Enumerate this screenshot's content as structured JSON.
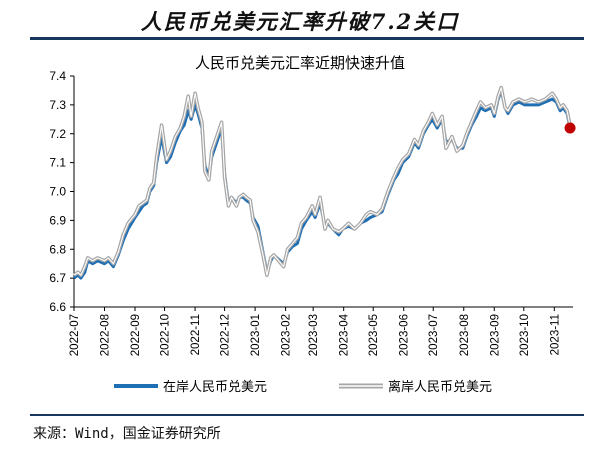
{
  "header": {
    "title": "人民币兑美元汇率升破7.2关口"
  },
  "source": "来源：Wind，国金证券研究所",
  "chart_data": {
    "type": "line",
    "title": "人民币兑美元汇率近期快速升值",
    "ylim": [
      6.6,
      7.4
    ],
    "y_ticks": [
      "6.6",
      "6.7",
      "6.8",
      "6.9",
      "7.0",
      "7.1",
      "7.2",
      "7.3",
      "7.4"
    ],
    "x_ticks": [
      "2022-07",
      "2022-08",
      "2022-09",
      "2022-10",
      "2022-11",
      "2022-12",
      "2023-01",
      "2023-02",
      "2023-03",
      "2023-04",
      "2023-05",
      "2023-06",
      "2023-07",
      "2023-08",
      "2023-09",
      "2023-10",
      "2023-11"
    ],
    "xlim": [
      "2022-07-01",
      "2023-11-20"
    ],
    "grid": false,
    "legend_position": "bottom",
    "colors": {
      "onshore": "#1f6fb5",
      "offshore": "#a6a6a6",
      "offshore_inner": "#ffffff",
      "marker": "#c00000",
      "axis": "#000000"
    },
    "series": [
      {
        "name": "在岸人民币兑美元",
        "points": [
          [
            "2022-07-01",
            6.7
          ],
          [
            "2022-07-05",
            6.71
          ],
          [
            "2022-07-08",
            6.7
          ],
          [
            "2022-07-12",
            6.72
          ],
          [
            "2022-07-15",
            6.76
          ],
          [
            "2022-07-20",
            6.75
          ],
          [
            "2022-07-25",
            6.76
          ],
          [
            "2022-08-01",
            6.75
          ],
          [
            "2022-08-05",
            6.76
          ],
          [
            "2022-08-10",
            6.74
          ],
          [
            "2022-08-15",
            6.78
          ],
          [
            "2022-08-20",
            6.83
          ],
          [
            "2022-08-25",
            6.87
          ],
          [
            "2022-09-01",
            6.91
          ],
          [
            "2022-09-05",
            6.93
          ],
          [
            "2022-09-09",
            6.95
          ],
          [
            "2022-09-13",
            6.96
          ],
          [
            "2022-09-16",
            7.0
          ],
          [
            "2022-09-20",
            7.02
          ],
          [
            "2022-09-23",
            7.1
          ],
          [
            "2022-09-28",
            7.19
          ],
          [
            "2022-10-03",
            7.1
          ],
          [
            "2022-10-07",
            7.12
          ],
          [
            "2022-10-12",
            7.17
          ],
          [
            "2022-10-17",
            7.21
          ],
          [
            "2022-10-21",
            7.23
          ],
          [
            "2022-10-25",
            7.28
          ],
          [
            "2022-10-28",
            7.25
          ],
          [
            "2022-11-01",
            7.3
          ],
          [
            "2022-11-04",
            7.27
          ],
          [
            "2022-11-08",
            7.22
          ],
          [
            "2022-11-11",
            7.09
          ],
          [
            "2022-11-15",
            7.05
          ],
          [
            "2022-11-18",
            7.12
          ],
          [
            "2022-11-24",
            7.18
          ],
          [
            "2022-11-28",
            7.22
          ],
          [
            "2022-12-01",
            7.06
          ],
          [
            "2022-12-05",
            6.96
          ],
          [
            "2022-12-08",
            6.98
          ],
          [
            "2022-12-13",
            6.96
          ],
          [
            "2022-12-16",
            6.98
          ],
          [
            "2022-12-20",
            6.98
          ],
          [
            "2022-12-23",
            6.97
          ],
          [
            "2022-12-27",
            6.96
          ],
          [
            "2022-12-30",
            6.91
          ],
          [
            "2023-01-04",
            6.88
          ],
          [
            "2023-01-09",
            6.79
          ],
          [
            "2023-01-13",
            6.72
          ],
          [
            "2023-01-17",
            6.76
          ],
          [
            "2023-01-20",
            6.78
          ],
          [
            "2023-01-30",
            6.75
          ],
          [
            "2023-02-03",
            6.79
          ],
          [
            "2023-02-08",
            6.81
          ],
          [
            "2023-02-13",
            6.82
          ],
          [
            "2023-02-17",
            6.87
          ],
          [
            "2023-02-22",
            6.9
          ],
          [
            "2023-02-28",
            6.93
          ],
          [
            "2023-03-03",
            6.91
          ],
          [
            "2023-03-08",
            6.96
          ],
          [
            "2023-03-13",
            6.88
          ],
          [
            "2023-03-16",
            6.89
          ],
          [
            "2023-03-21",
            6.87
          ],
          [
            "2023-03-27",
            6.85
          ],
          [
            "2023-03-31",
            6.87
          ],
          [
            "2023-04-06",
            6.88
          ],
          [
            "2023-04-12",
            6.87
          ],
          [
            "2023-04-18",
            6.89
          ],
          [
            "2023-04-24",
            6.9
          ],
          [
            "2023-04-28",
            6.91
          ],
          [
            "2023-05-05",
            6.92
          ],
          [
            "2023-05-10",
            6.93
          ],
          [
            "2023-05-16",
            6.99
          ],
          [
            "2023-05-22",
            7.04
          ],
          [
            "2023-05-26",
            7.06
          ],
          [
            "2023-05-31",
            7.1
          ],
          [
            "2023-06-06",
            7.12
          ],
          [
            "2023-06-12",
            7.17
          ],
          [
            "2023-06-16",
            7.15
          ],
          [
            "2023-06-21",
            7.2
          ],
          [
            "2023-06-26",
            7.23
          ],
          [
            "2023-06-30",
            7.25
          ],
          [
            "2023-07-05",
            7.22
          ],
          [
            "2023-07-10",
            7.25
          ],
          [
            "2023-07-14",
            7.17
          ],
          [
            "2023-07-20",
            7.18
          ],
          [
            "2023-07-25",
            7.15
          ],
          [
            "2023-07-31",
            7.15
          ],
          [
            "2023-08-04",
            7.19
          ],
          [
            "2023-08-09",
            7.23
          ],
          [
            "2023-08-14",
            7.26
          ],
          [
            "2023-08-18",
            7.29
          ],
          [
            "2023-08-23",
            7.28
          ],
          [
            "2023-08-29",
            7.29
          ],
          [
            "2023-09-01",
            7.26
          ],
          [
            "2023-09-05",
            7.32
          ],
          [
            "2023-09-08",
            7.35
          ],
          [
            "2023-09-12",
            7.29
          ],
          [
            "2023-09-15",
            7.27
          ],
          [
            "2023-09-20",
            7.3
          ],
          [
            "2023-09-26",
            7.31
          ],
          [
            "2023-10-02",
            7.3
          ],
          [
            "2023-10-09",
            7.3
          ],
          [
            "2023-10-16",
            7.3
          ],
          [
            "2023-10-23",
            7.31
          ],
          [
            "2023-10-30",
            7.32
          ],
          [
            "2023-11-03",
            7.31
          ],
          [
            "2023-11-07",
            7.28
          ],
          [
            "2023-11-10",
            7.29
          ],
          [
            "2023-11-14",
            7.27
          ],
          [
            "2023-11-17",
            7.22
          ]
        ]
      },
      {
        "name": "离岸人民币兑美元",
        "points": [
          [
            "2022-07-01",
            6.71
          ],
          [
            "2022-07-05",
            6.72
          ],
          [
            "2022-07-08",
            6.71
          ],
          [
            "2022-07-12",
            6.74
          ],
          [
            "2022-07-15",
            6.77
          ],
          [
            "2022-07-20",
            6.76
          ],
          [
            "2022-07-25",
            6.77
          ],
          [
            "2022-08-01",
            6.76
          ],
          [
            "2022-08-05",
            6.77
          ],
          [
            "2022-08-10",
            6.75
          ],
          [
            "2022-08-15",
            6.79
          ],
          [
            "2022-08-20",
            6.85
          ],
          [
            "2022-08-25",
            6.89
          ],
          [
            "2022-09-01",
            6.92
          ],
          [
            "2022-09-05",
            6.95
          ],
          [
            "2022-09-09",
            6.96
          ],
          [
            "2022-09-13",
            6.97
          ],
          [
            "2022-09-16",
            7.01
          ],
          [
            "2022-09-20",
            7.03
          ],
          [
            "2022-09-23",
            7.12
          ],
          [
            "2022-09-28",
            7.23
          ],
          [
            "2022-10-03",
            7.11
          ],
          [
            "2022-10-07",
            7.14
          ],
          [
            "2022-10-12",
            7.19
          ],
          [
            "2022-10-17",
            7.22
          ],
          [
            "2022-10-21",
            7.26
          ],
          [
            "2022-10-25",
            7.33
          ],
          [
            "2022-10-28",
            7.26
          ],
          [
            "2022-11-01",
            7.34
          ],
          [
            "2022-11-04",
            7.29
          ],
          [
            "2022-11-08",
            7.24
          ],
          [
            "2022-11-11",
            7.07
          ],
          [
            "2022-11-15",
            7.04
          ],
          [
            "2022-11-18",
            7.14
          ],
          [
            "2022-11-24",
            7.2
          ],
          [
            "2022-11-28",
            7.24
          ],
          [
            "2022-12-01",
            7.05
          ],
          [
            "2022-12-05",
            6.95
          ],
          [
            "2022-12-08",
            6.98
          ],
          [
            "2022-12-13",
            6.95
          ],
          [
            "2022-12-16",
            6.98
          ],
          [
            "2022-12-20",
            6.99
          ],
          [
            "2022-12-23",
            6.98
          ],
          [
            "2022-12-27",
            6.97
          ],
          [
            "2022-12-30",
            6.9
          ],
          [
            "2023-01-04",
            6.86
          ],
          [
            "2023-01-09",
            6.78
          ],
          [
            "2023-01-13",
            6.71
          ],
          [
            "2023-01-17",
            6.77
          ],
          [
            "2023-01-20",
            6.78
          ],
          [
            "2023-01-30",
            6.74
          ],
          [
            "2023-02-03",
            6.8
          ],
          [
            "2023-02-08",
            6.82
          ],
          [
            "2023-02-13",
            6.84
          ],
          [
            "2023-02-17",
            6.89
          ],
          [
            "2023-02-22",
            6.91
          ],
          [
            "2023-02-28",
            6.95
          ],
          [
            "2023-03-03",
            6.92
          ],
          [
            "2023-03-08",
            6.98
          ],
          [
            "2023-03-13",
            6.87
          ],
          [
            "2023-03-16",
            6.9
          ],
          [
            "2023-03-21",
            6.87
          ],
          [
            "2023-03-27",
            6.86
          ],
          [
            "2023-03-31",
            6.87
          ],
          [
            "2023-04-06",
            6.89
          ],
          [
            "2023-04-12",
            6.87
          ],
          [
            "2023-04-18",
            6.89
          ],
          [
            "2023-04-24",
            6.92
          ],
          [
            "2023-04-28",
            6.93
          ],
          [
            "2023-05-05",
            6.92
          ],
          [
            "2023-05-10",
            6.94
          ],
          [
            "2023-05-16",
            7.0
          ],
          [
            "2023-05-22",
            7.05
          ],
          [
            "2023-05-26",
            7.08
          ],
          [
            "2023-05-31",
            7.11
          ],
          [
            "2023-06-06",
            7.13
          ],
          [
            "2023-06-12",
            7.18
          ],
          [
            "2023-06-16",
            7.16
          ],
          [
            "2023-06-21",
            7.21
          ],
          [
            "2023-06-26",
            7.24
          ],
          [
            "2023-06-30",
            7.27
          ],
          [
            "2023-07-05",
            7.23
          ],
          [
            "2023-07-10",
            7.26
          ],
          [
            "2023-07-14",
            7.15
          ],
          [
            "2023-07-20",
            7.19
          ],
          [
            "2023-07-25",
            7.14
          ],
          [
            "2023-07-31",
            7.16
          ],
          [
            "2023-08-04",
            7.2
          ],
          [
            "2023-08-09",
            7.24
          ],
          [
            "2023-08-14",
            7.28
          ],
          [
            "2023-08-18",
            7.31
          ],
          [
            "2023-08-23",
            7.29
          ],
          [
            "2023-08-29",
            7.3
          ],
          [
            "2023-09-01",
            7.27
          ],
          [
            "2023-09-05",
            7.33
          ],
          [
            "2023-09-08",
            7.36
          ],
          [
            "2023-09-12",
            7.29
          ],
          [
            "2023-09-15",
            7.28
          ],
          [
            "2023-09-20",
            7.31
          ],
          [
            "2023-09-26",
            7.32
          ],
          [
            "2023-10-02",
            7.31
          ],
          [
            "2023-10-09",
            7.32
          ],
          [
            "2023-10-16",
            7.31
          ],
          [
            "2023-10-23",
            7.32
          ],
          [
            "2023-10-30",
            7.34
          ],
          [
            "2023-11-03",
            7.32
          ],
          [
            "2023-11-07",
            7.29
          ],
          [
            "2023-11-10",
            7.3
          ],
          [
            "2023-11-14",
            7.28
          ],
          [
            "2023-11-17",
            7.23
          ]
        ]
      }
    ],
    "end_marker": {
      "x": "2023-11-17",
      "y": 7.22
    }
  }
}
